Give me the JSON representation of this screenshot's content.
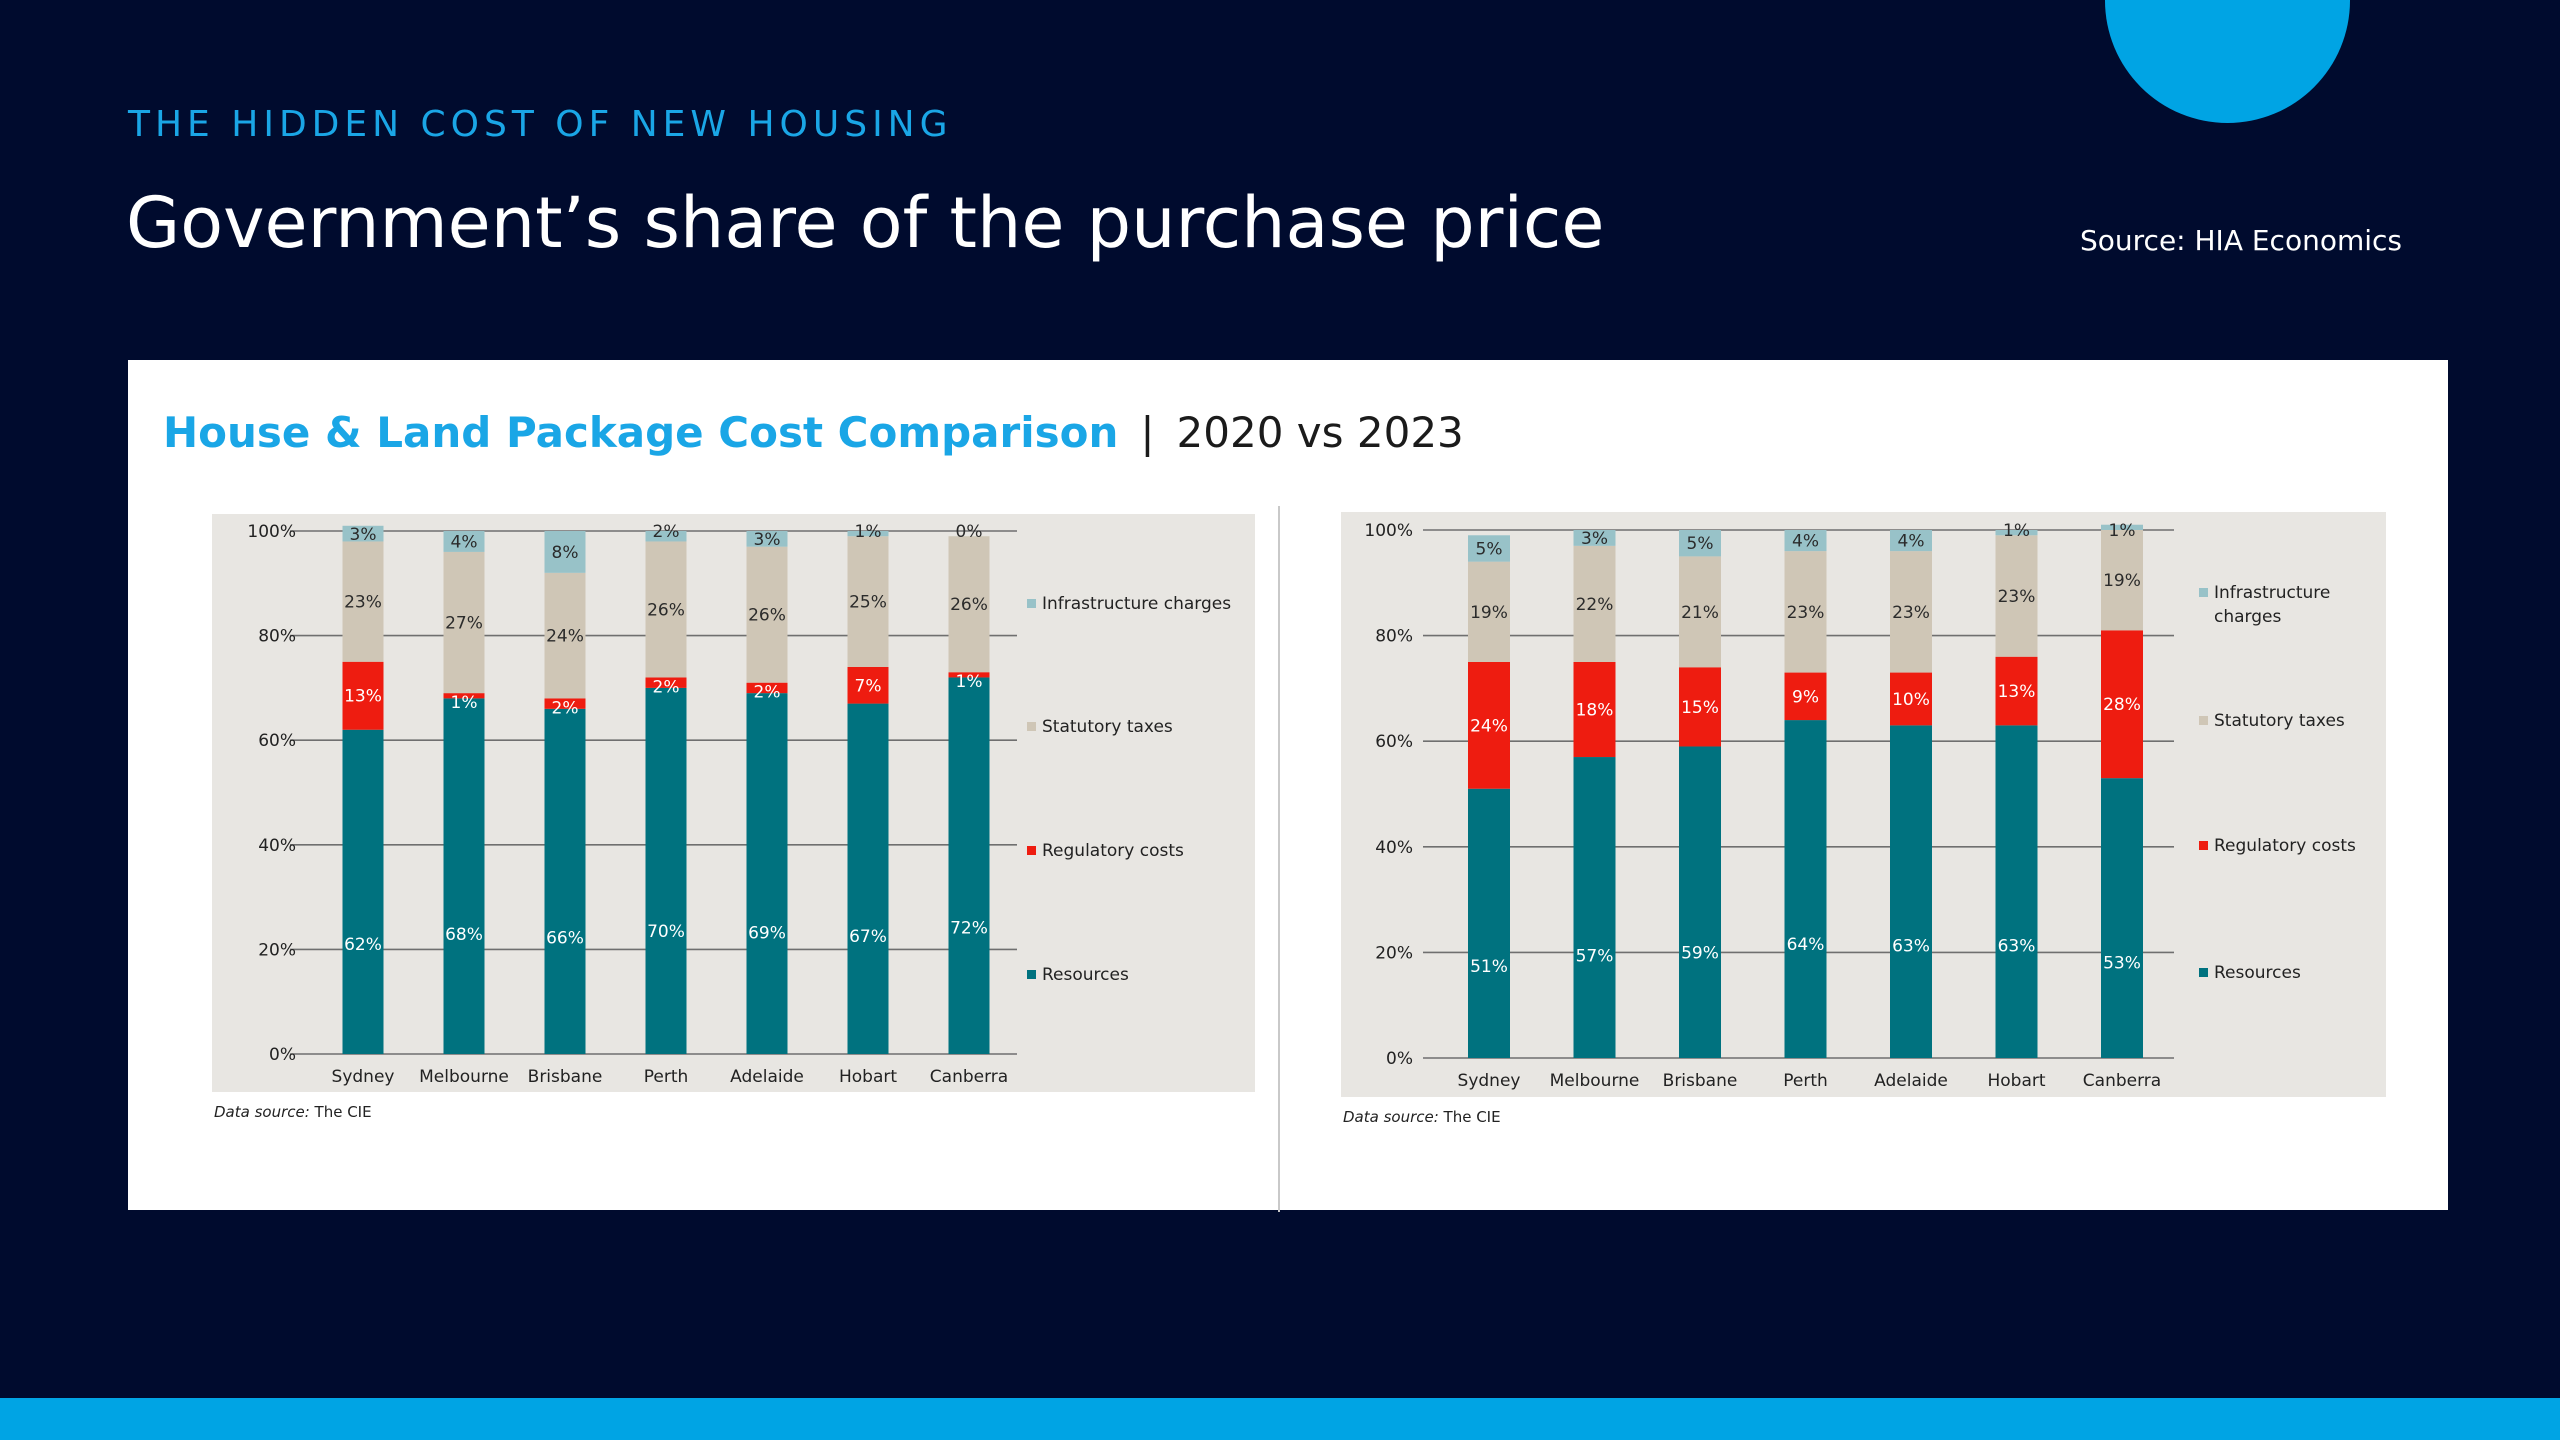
{
  "slide": {
    "eyebrow": "THE HIDDEN COST OF NEW HOUSING",
    "title": "Government’s share of the purchase price",
    "source": "Source: HIA Economics",
    "card_title_main": "House & Land Package Cost Comparison",
    "card_title_sep": "|",
    "card_title_sub": "2020 vs 2023"
  },
  "colors": {
    "background": "#000b2e",
    "accent": "#00a4e4",
    "resources": "#00727f",
    "regulatory": "#ee1c10",
    "statutory": "#cfc6b6",
    "infrastructure": "#98c2c8",
    "plot_bg": "#e8e6e2"
  },
  "chart_data": [
    {
      "type": "bar",
      "stacked": true,
      "categories": [
        "Sydney",
        "Melbourne",
        "Brisbane",
        "Perth",
        "Adelaide",
        "Hobart",
        "Canberra"
      ],
      "series": [
        {
          "name": "Resources",
          "values": [
            62,
            68,
            66,
            70,
            69,
            67,
            72
          ]
        },
        {
          "name": "Regulatory costs",
          "values": [
            13,
            1,
            2,
            2,
            2,
            7,
            1
          ]
        },
        {
          "name": "Statutory taxes",
          "values": [
            23,
            27,
            24,
            26,
            26,
            25,
            26
          ]
        },
        {
          "name": "Infrastructure charges",
          "values": [
            3,
            4,
            8,
            2,
            3,
            1,
            0
          ]
        }
      ],
      "legend_order": [
        "Infrastructure charges",
        "Statutory taxes",
        "Regulatory costs",
        "Resources"
      ],
      "legend_placement": "right",
      "yticks": [
        "0%",
        "20%",
        "40%",
        "60%",
        "80%",
        "100%"
      ],
      "ylim": [
        0,
        100
      ],
      "grid": true,
      "footnote_prefix": "Data source:",
      "footnote_name": "The CIE"
    },
    {
      "type": "bar",
      "stacked": true,
      "categories": [
        "Sydney",
        "Melbourne",
        "Brisbane",
        "Perth",
        "Adelaide",
        "Hobart",
        "Canberra"
      ],
      "series": [
        {
          "name": "Resources",
          "values": [
            51,
            57,
            59,
            64,
            63,
            63,
            53
          ]
        },
        {
          "name": "Regulatory costs",
          "values": [
            24,
            18,
            15,
            9,
            10,
            13,
            28
          ]
        },
        {
          "name": "Statutory taxes",
          "values": [
            19,
            22,
            21,
            23,
            23,
            23,
            19
          ]
        },
        {
          "name": "Infrastructure charges",
          "values": [
            5,
            3,
            5,
            4,
            4,
            1,
            1
          ]
        }
      ],
      "legend_order": [
        "Infrastructure charges",
        "Statutory taxes",
        "Regulatory costs",
        "Resources"
      ],
      "legend_labels": [
        [
          "Infrastructure",
          "charges"
        ],
        [
          "Statutory taxes"
        ],
        [
          "Regulatory costs"
        ],
        [
          "Resources"
        ]
      ],
      "legend_placement": "right",
      "yticks": [
        "0%",
        "20%",
        "40%",
        "60%",
        "80%",
        "100%"
      ],
      "ylim": [
        0,
        100
      ],
      "grid": true,
      "footnote_prefix": "Data source:",
      "footnote_name": "The CIE"
    }
  ]
}
